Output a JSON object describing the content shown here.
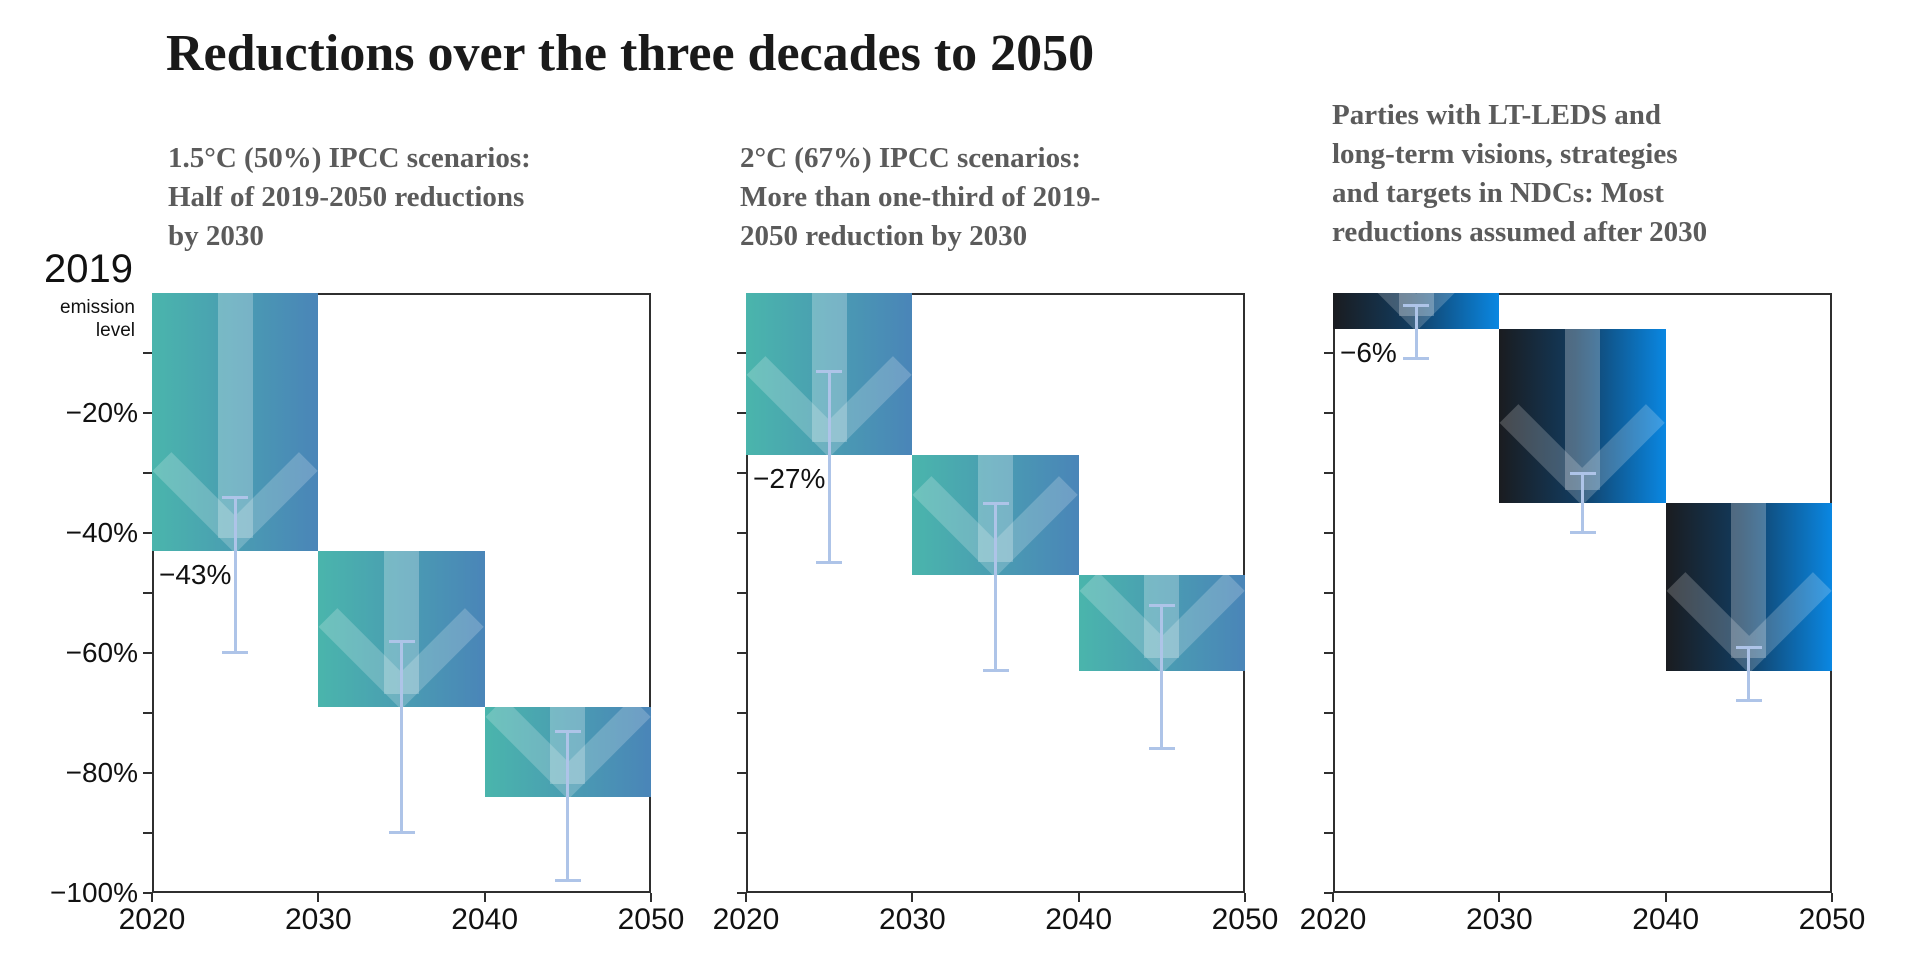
{
  "title": "Reductions over the three decades to 2050",
  "y_axis": {
    "top_label": "2019",
    "top_label_sub": "emission\nlevel",
    "unit": "% reduction vs 2019 emission level",
    "tick_labels": [
      "−20%",
      "−40%",
      "−60%",
      "−80%",
      "−100%"
    ],
    "tick_values": [
      20,
      40,
      60,
      80,
      100
    ],
    "minor_tick_step": 10,
    "range": [
      0,
      -100
    ]
  },
  "x_axis": {
    "tick_labels": [
      "2020",
      "2030",
      "2040",
      "2050"
    ],
    "range": [
      2020,
      2050
    ]
  },
  "colors": {
    "bar_gradient_left": "#4ab5ac",
    "bar_gradient_right": "#4a85b8",
    "ndc_gradient_left": "#1a1c20",
    "ndc_gradient_mid": "#123a5c",
    "ndc_gradient_right": "#0a87e2",
    "whisker": "#aec4e8",
    "axis": "#2f2f2f",
    "title_text": "#1a1a1a",
    "subtitle_text": "#5b5b5b",
    "label_text": "#111111"
  },
  "chart_data": [
    {
      "type": "bar",
      "name": "ipcc-1.5c-scenarios",
      "subtitle": "1.5°C (50%) IPCC scenarios:\nHalf of 2019-2050 reductions\nby 2030",
      "categories": [
        "2020-2030",
        "2030-2040",
        "2040-2050"
      ],
      "segments": [
        {
          "start": 0,
          "end": 43
        },
        {
          "start": 43,
          "end": 69
        },
        {
          "start": 69,
          "end": 84
        }
      ],
      "whiskers": [
        [
          34,
          60
        ],
        [
          58,
          90
        ],
        [
          73,
          98
        ]
      ],
      "annotation": {
        "text": "−43%",
        "value": 43
      },
      "palette": "teal-blue",
      "legend": "grid off, values are % reduction below 2019 level"
    },
    {
      "type": "bar",
      "name": "ipcc-2c-scenarios",
      "subtitle": "2°C (67%) IPCC scenarios:\nMore than one-third of 2019-\n2050 reduction by 2030",
      "categories": [
        "2020-2030",
        "2030-2040",
        "2040-2050"
      ],
      "segments": [
        {
          "start": 0,
          "end": 27
        },
        {
          "start": 27,
          "end": 47
        },
        {
          "start": 47,
          "end": 63
        }
      ],
      "whiskers": [
        [
          13,
          45
        ],
        [
          35,
          63
        ],
        [
          52,
          76
        ]
      ],
      "annotation": {
        "text": "−27%",
        "value": 27
      },
      "palette": "teal-blue",
      "legend": "grid off, values are % reduction below 2019 level"
    },
    {
      "type": "bar",
      "name": "parties-lt-leds-ndcs",
      "subtitle": "Parties with LT-LEDS and\nlong-term visions, strategies\nand targets in NDCs: Most\nreductions assumed after 2030",
      "categories": [
        "2020-2030",
        "2030-2040",
        "2040-2050"
      ],
      "segments": [
        {
          "start": 0,
          "end": 6
        },
        {
          "start": 6,
          "end": 35
        },
        {
          "start": 35,
          "end": 63
        }
      ],
      "whiskers": [
        [
          2,
          11
        ],
        [
          30,
          40
        ],
        [
          59,
          68
        ]
      ],
      "annotation": {
        "text": "−6%",
        "value": 6
      },
      "palette": "black-blue",
      "legend": "grid off, values are % reduction below 2019 level"
    }
  ]
}
